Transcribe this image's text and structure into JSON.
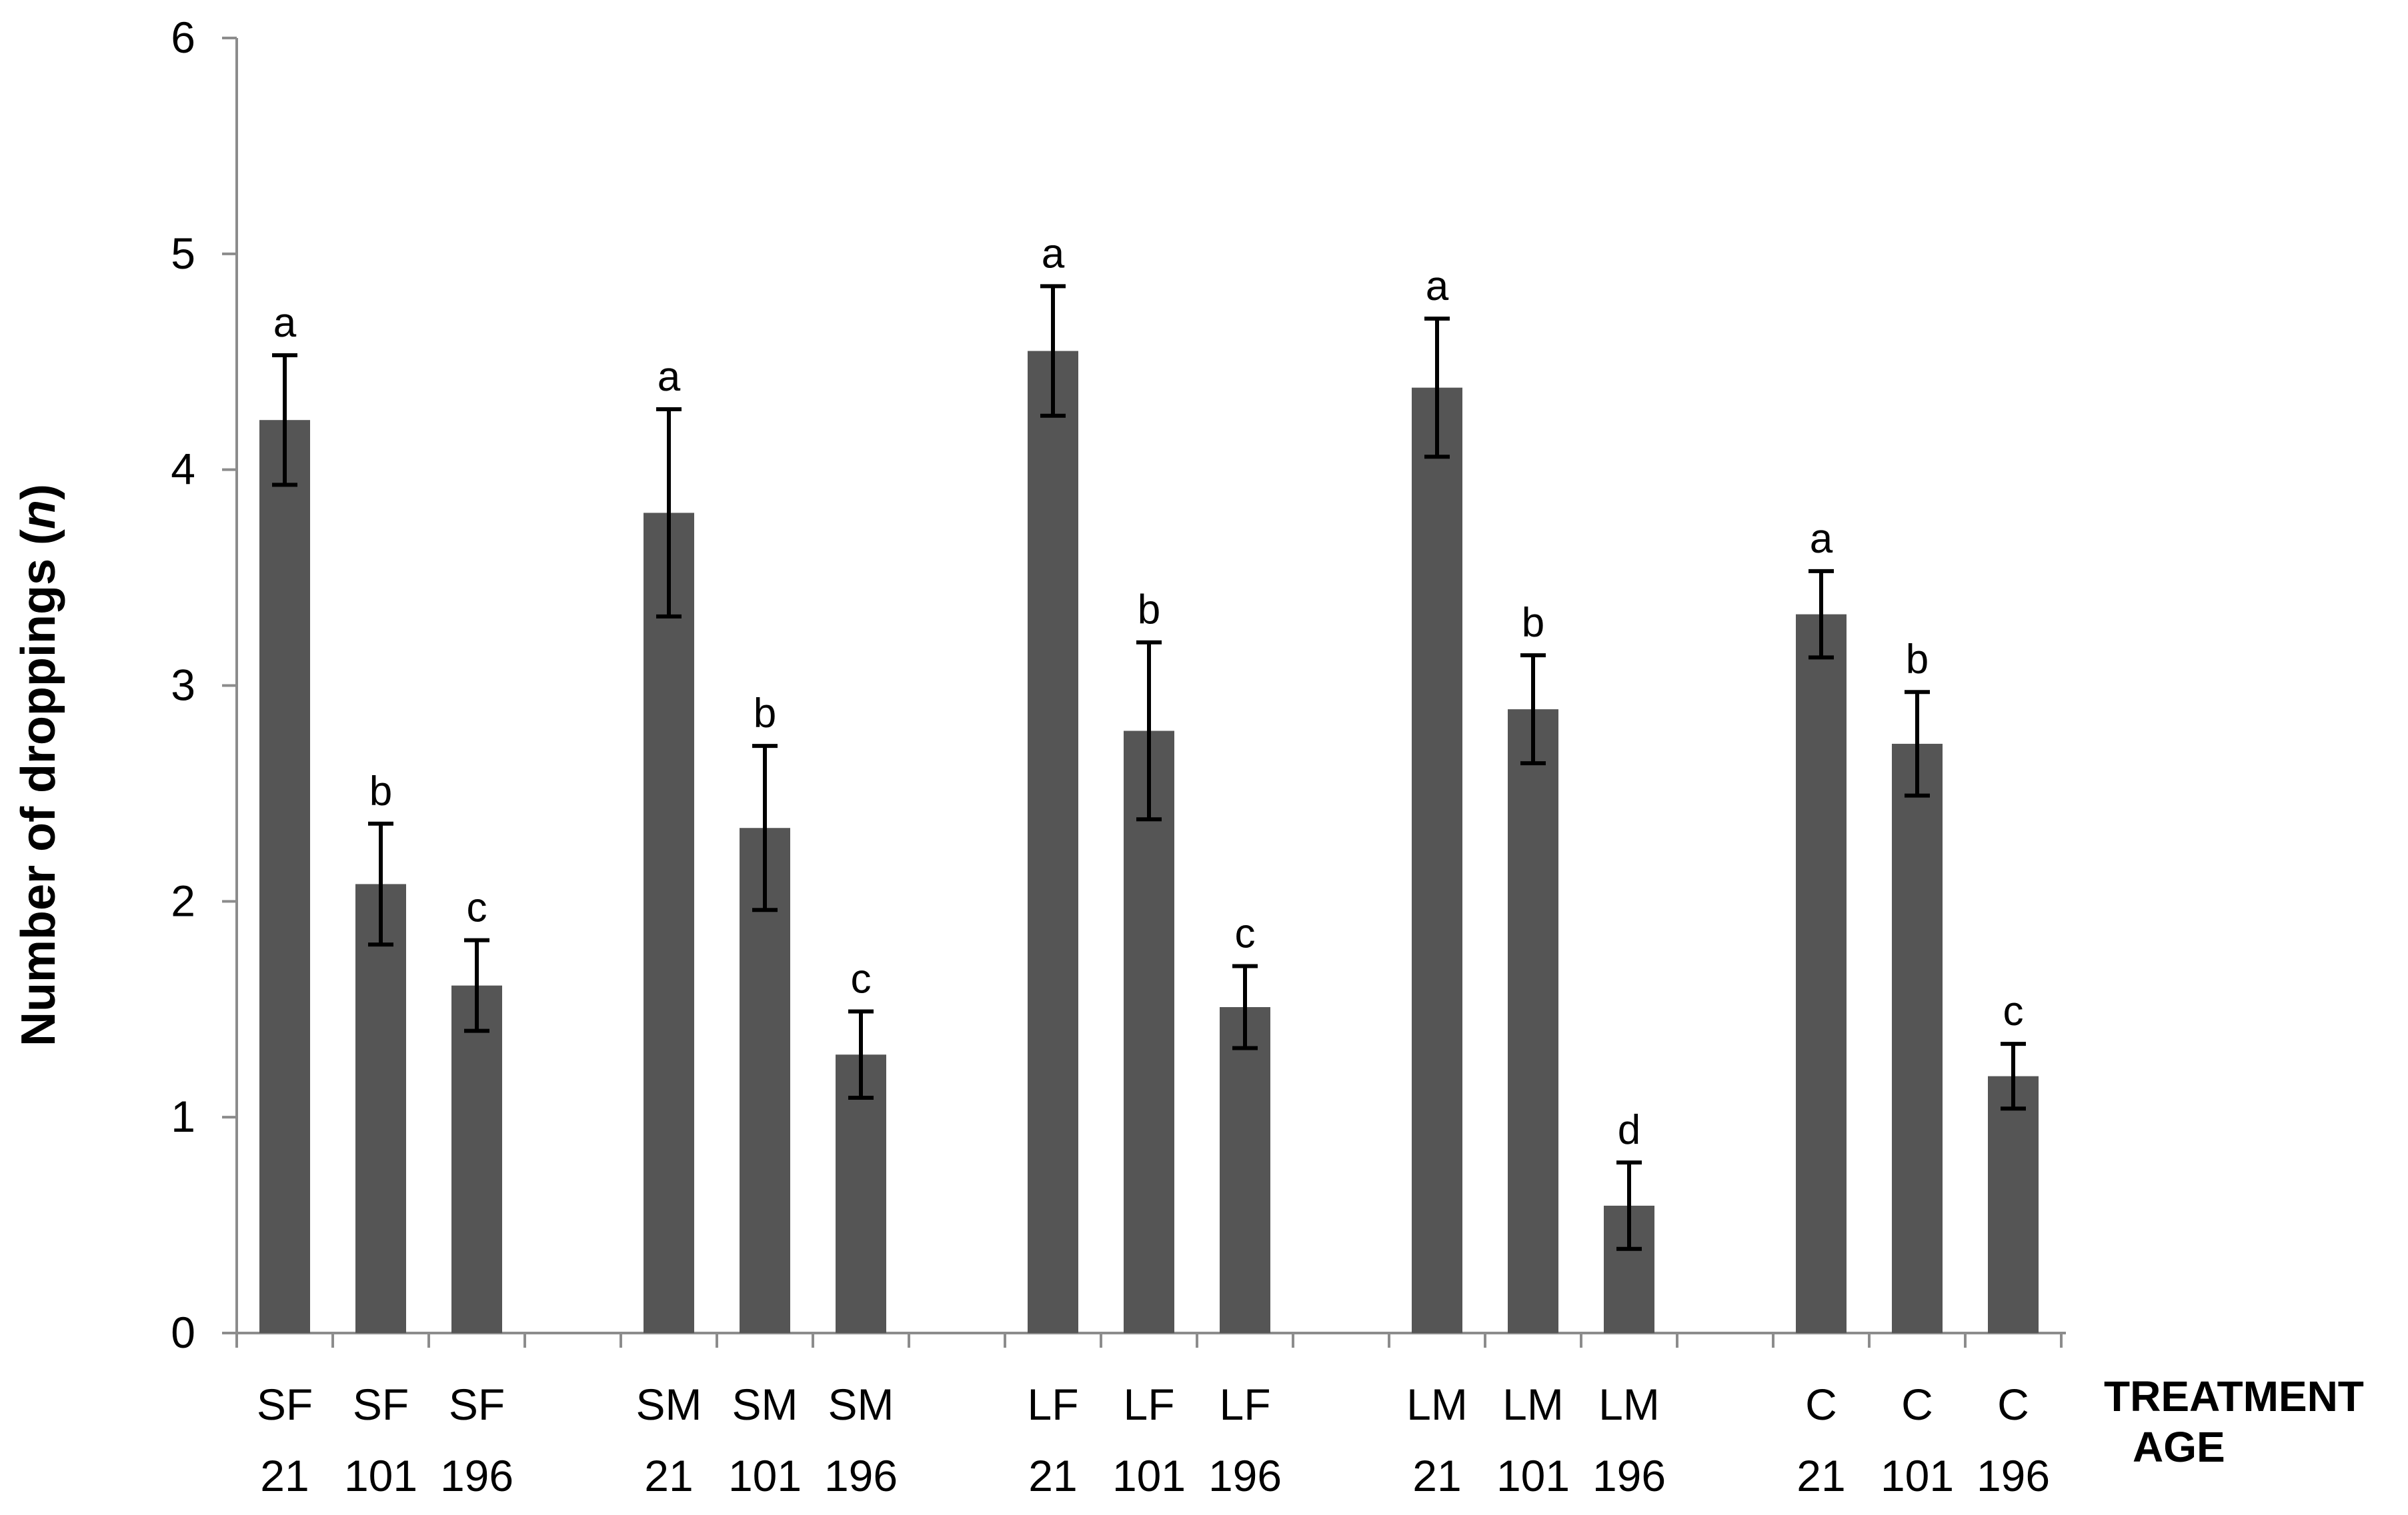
{
  "chart_data": {
    "type": "bar",
    "title": "",
    "xlabel": "",
    "ylabel": "Number of droppings (",
    "ylabel_italic": "n",
    "ylabel_close": ")",
    "ylim": [
      0,
      6
    ],
    "yticks": [
      "0",
      "1",
      "2",
      "3",
      "4",
      "5",
      "6"
    ],
    "row_labels": [
      "TREATMENT",
      "AGE"
    ],
    "groups": [
      {
        "bars": [
          {
            "treatment": "SF",
            "age": "21",
            "value": 4.23,
            "err": 0.3,
            "sig": "a"
          },
          {
            "treatment": "SF",
            "age": "101",
            "value": 2.08,
            "err": 0.28,
            "sig": "b"
          },
          {
            "treatment": "SF",
            "age": "196",
            "value": 1.61,
            "err": 0.21,
            "sig": "c"
          }
        ]
      },
      {
        "bars": [
          {
            "treatment": "SM",
            "age": "21",
            "value": 3.8,
            "err": 0.48,
            "sig": "a"
          },
          {
            "treatment": "SM",
            "age": "101",
            "value": 2.34,
            "err": 0.38,
            "sig": "b"
          },
          {
            "treatment": "SM",
            "age": "196",
            "value": 1.29,
            "err": 0.2,
            "sig": "c"
          }
        ]
      },
      {
        "bars": [
          {
            "treatment": "LF",
            "age": "21",
            "value": 4.55,
            "err": 0.3,
            "sig": "a"
          },
          {
            "treatment": "LF",
            "age": "101",
            "value": 2.79,
            "err": 0.41,
            "sig": "b"
          },
          {
            "treatment": "LF",
            "age": "196",
            "value": 1.51,
            "err": 0.19,
            "sig": "c"
          }
        ]
      },
      {
        "bars": [
          {
            "treatment": "LM",
            "age": "21",
            "value": 4.38,
            "err": 0.32,
            "sig": "a"
          },
          {
            "treatment": "LM",
            "age": "101",
            "value": 2.89,
            "err": 0.25,
            "sig": "b"
          },
          {
            "treatment": "LM",
            "age": "196",
            "value": 0.59,
            "err": 0.2,
            "sig": "d"
          }
        ]
      },
      {
        "bars": [
          {
            "treatment": "C",
            "age": "21",
            "value": 3.33,
            "err": 0.2,
            "sig": "a"
          },
          {
            "treatment": "C",
            "age": "101",
            "value": 2.73,
            "err": 0.24,
            "sig": "b"
          },
          {
            "treatment": "C",
            "age": "196",
            "value": 1.19,
            "err": 0.15,
            "sig": "c"
          }
        ]
      }
    ],
    "colors": {
      "bar": "#555555",
      "axis": "#8c8c8c",
      "error": "#000000"
    }
  }
}
